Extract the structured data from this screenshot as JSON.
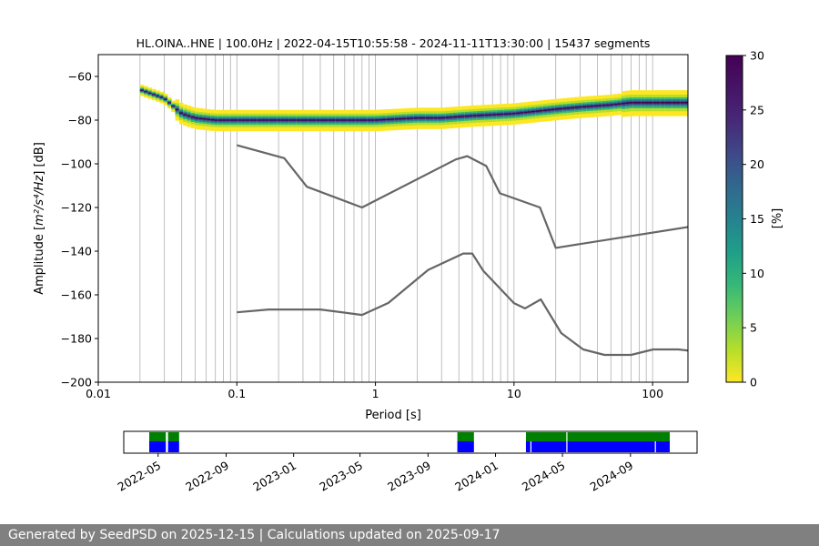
{
  "chart_data": [
    {
      "type": "heatmap",
      "title": "HL.OINA..HNE | 100.0Hz | 2022-04-15T10:55:58 - 2024-11-11T13:30:00 | 15437 segments",
      "xlabel": "Period [s]",
      "ylabel_prefix": "Amplitude [",
      "ylabel_math": "m²/s⁴/Hz",
      "ylabel_suffix": "] [dB]",
      "x_scale": "log",
      "xlim": [
        0.01,
        180
      ],
      "ylim": [
        -200,
        -50
      ],
      "grid": "x-only",
      "x_ticks": [
        {
          "value": 0.01,
          "label": "0.01"
        },
        {
          "value": 0.1,
          "label": "0.1"
        },
        {
          "value": 1,
          "label": "1"
        },
        {
          "value": 10,
          "label": "10"
        },
        {
          "value": 100,
          "label": "100"
        }
      ],
      "y_ticks": [
        {
          "value": -60,
          "label": "−60"
        },
        {
          "value": -80,
          "label": "−80"
        },
        {
          "value": -100,
          "label": "−100"
        },
        {
          "value": -120,
          "label": "−120"
        },
        {
          "value": -140,
          "label": "−140"
        },
        {
          "value": -160,
          "label": "−160"
        },
        {
          "value": -180,
          "label": "−180"
        },
        {
          "value": -200,
          "label": "−200"
        }
      ],
      "colorbar": {
        "label": "[%]",
        "range": [
          0,
          30
        ],
        "colormap": "viridis_r",
        "ticks": [
          {
            "value": 0,
            "label": "0"
          },
          {
            "value": 5,
            "label": "5"
          },
          {
            "value": 10,
            "label": "10"
          },
          {
            "value": 15,
            "label": "15"
          },
          {
            "value": 20,
            "label": "20"
          },
          {
            "value": 25,
            "label": "25"
          },
          {
            "value": 30,
            "label": "30"
          }
        ]
      },
      "psd_mode": {
        "period": [
          0.02,
          0.03,
          0.04,
          0.05,
          0.07,
          0.1,
          0.2,
          0.3,
          0.5,
          1,
          2,
          3,
          5,
          10,
          20,
          30,
          50,
          70,
          100,
          180
        ],
        "db": [
          -66,
          -70,
          -77,
          -79,
          -80,
          -80,
          -80,
          -80,
          -80,
          -80,
          -79,
          -79,
          -78,
          -77,
          -75,
          -74,
          -73,
          -72,
          -72,
          -72
        ]
      },
      "noise_models": {
        "color": "#666666",
        "series": [
          {
            "period": [
              0.1,
              0.22,
              0.32,
              0.8,
              3.8,
              4.6,
              6.3,
              7.9,
              15.4,
              20,
              354.8
            ],
            "db": [
              -91.5,
              -97.4,
              -110.5,
              -120,
              -98,
              -96.5,
              -101,
              -113.5,
              -120,
              -138.5,
              -126
            ]
          },
          {
            "period": [
              0.1,
              0.17,
              0.4,
              0.8,
              1.24,
              2.4,
              4.3,
              5,
              6,
              10,
              12,
              15.6,
              21.9,
              31.6,
              45,
              70,
              101,
              154,
              328
            ],
            "db": [
              -168,
              -166.7,
              -166.7,
              -169.2,
              -163.7,
              -148.6,
              -141.1,
              -141.1,
              -149,
              -163.8,
              -166.2,
              -162.1,
              -177.5,
              -185,
              -187.5,
              -187.5,
              -185,
              -185,
              -187.5
            ]
          }
        ]
      }
    },
    {
      "type": "timeline",
      "date_range": [
        "2022-04-15",
        "2024-11-11"
      ],
      "x_ticks": [
        {
          "date": "2022-05-01",
          "label": "2022-05"
        },
        {
          "date": "2022-09-01",
          "label": "2022-09"
        },
        {
          "date": "2023-01-01",
          "label": "2023-01"
        },
        {
          "date": "2023-05-01",
          "label": "2023-05"
        },
        {
          "date": "2023-09-01",
          "label": "2023-09"
        },
        {
          "date": "2024-01-01",
          "label": "2024-01"
        },
        {
          "date": "2024-05-01",
          "label": "2024-05"
        },
        {
          "date": "2024-09-01",
          "label": "2024-09"
        }
      ],
      "colors": {
        "top": "#008000",
        "bottom": "#0000ff"
      },
      "top_segments": [
        [
          "2022-04-15",
          "2022-05-15"
        ],
        [
          "2022-05-19",
          "2022-06-08"
        ],
        [
          "2023-10-24",
          "2023-11-23"
        ],
        [
          "2024-02-25",
          "2024-05-08"
        ],
        [
          "2024-05-10",
          "2024-11-11"
        ]
      ],
      "bottom_segments": [
        [
          "2022-04-15",
          "2022-05-15"
        ],
        [
          "2022-05-19",
          "2022-06-08"
        ],
        [
          "2023-10-24",
          "2023-11-23"
        ],
        [
          "2024-02-25",
          "2024-03-04"
        ],
        [
          "2024-03-06",
          "2024-05-08"
        ],
        [
          "2024-05-10",
          "2024-10-15"
        ],
        [
          "2024-10-17",
          "2024-11-11"
        ]
      ]
    }
  ],
  "footer": {
    "text": "Generated by SeedPSD on 2025-12-15 | Calculations updated on 2025-09-17"
  }
}
